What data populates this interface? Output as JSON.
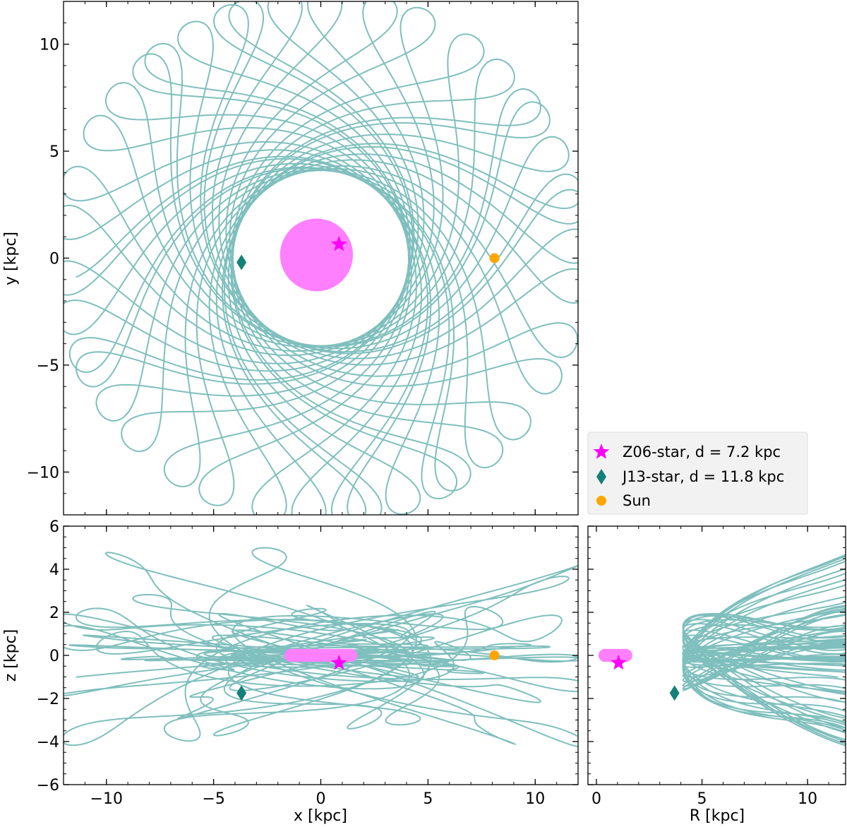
{
  "chart_data": [
    {
      "id": "xy",
      "type": "scatter",
      "xlim": [
        -12,
        12
      ],
      "ylim": [
        -12,
        12
      ],
      "xlabel": "",
      "ylabel": "y [kpc]",
      "xticks": [
        -10,
        -5,
        0,
        5,
        10
      ],
      "yticks": [
        -10,
        -5,
        0,
        5,
        10
      ],
      "xtick_labels": [
        "",
        "",
        "",
        "",
        ""
      ],
      "ytick_labels": [
        "−10",
        "−5",
        "0",
        "5",
        "10"
      ],
      "orbit_color": "#7fbfbd",
      "cloud_color": "#ff80ff",
      "cloud": {
        "shape": "disk",
        "cx": -0.2,
        "cy": 0.15,
        "r": 1.7
      },
      "markers": [
        {
          "series": "Z06-star, d = 7.2 kpc",
          "x": 0.85,
          "y": 0.65
        },
        {
          "series": "J13-star, d = 11.8 kpc",
          "x": -3.7,
          "y": -0.2
        },
        {
          "series": "Sun",
          "x": 8.1,
          "y": 0.0
        }
      ]
    },
    {
      "id": "xz",
      "type": "scatter",
      "xlim": [
        -12,
        12
      ],
      "ylim": [
        -6,
        6
      ],
      "xlabel": "x [kpc]",
      "ylabel": "z [kpc]",
      "xticks": [
        -10,
        -5,
        0,
        5,
        10
      ],
      "yticks": [
        -6,
        -4,
        -2,
        0,
        2,
        4,
        6
      ],
      "xtick_labels": [
        "−10",
        "−5",
        "0",
        "5",
        "10"
      ],
      "ytick_labels": [
        "−6",
        "−4",
        "−2",
        "0",
        "2",
        "4",
        "6"
      ],
      "orbit_color": "#7fbfbd",
      "cloud_color": "#ff80ff",
      "cloud": {
        "shape": "bar",
        "x0": -1.7,
        "x1": 1.7,
        "y0": -0.3,
        "y1": 0.3
      },
      "markers": [
        {
          "series": "Z06-star, d = 7.2 kpc",
          "x": 0.85,
          "y": -0.35
        },
        {
          "series": "J13-star, d = 11.8 kpc",
          "x": -3.7,
          "y": -1.75
        },
        {
          "series": "Sun",
          "x": 8.1,
          "y": 0.0
        }
      ]
    },
    {
      "id": "Rz",
      "type": "scatter",
      "xlim": [
        -0.4,
        11.8
      ],
      "ylim": [
        -6,
        6
      ],
      "xlabel": "R [kpc]",
      "ylabel": "",
      "xticks": [
        0,
        5,
        10
      ],
      "yticks": [
        -6,
        -4,
        -2,
        0,
        2,
        4,
        6
      ],
      "xtick_labels": [
        "0",
        "5",
        "10"
      ],
      "ytick_labels": [
        "",
        "",
        "",
        "",
        "",
        "",
        ""
      ],
      "orbit_color": "#7fbfbd",
      "cloud_color": "#ff80ff",
      "cloud": {
        "shape": "bar",
        "x0": 0.1,
        "x1": 1.7,
        "y0": -0.3,
        "y1": 0.3
      },
      "markers": [
        {
          "series": "Z06-star, d = 7.2 kpc",
          "x": 1.05,
          "y": -0.35
        },
        {
          "series": "J13-star, d = 11.8 kpc",
          "x": 3.7,
          "y": -1.75
        }
      ]
    }
  ],
  "legend": {
    "placement": "lower-right",
    "entries": [
      {
        "label": "Z06-star, d = 7.2 kpc",
        "marker": "star",
        "color": "#ff00ff"
      },
      {
        "label": "J13-star, d = 11.8 kpc",
        "marker": "diamond",
        "color": "#138079"
      },
      {
        "label": "Sun",
        "marker": "circle",
        "color": "#ffa500"
      }
    ]
  }
}
